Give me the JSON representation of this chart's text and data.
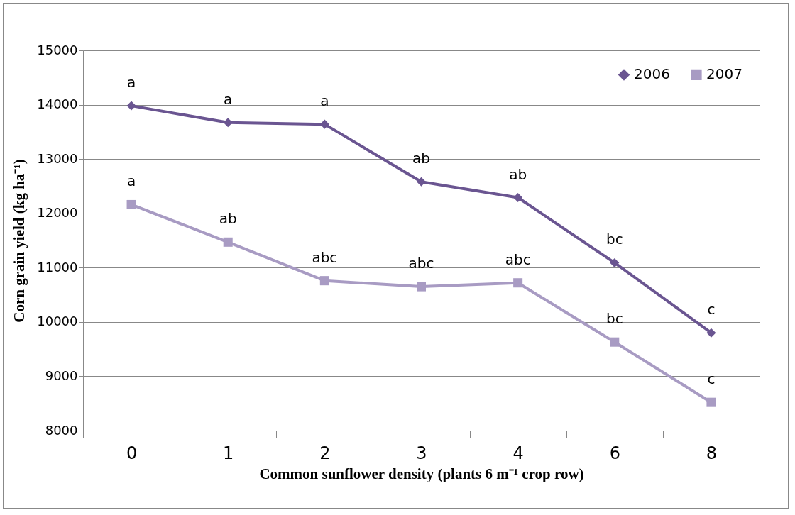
{
  "chart_data": {
    "type": "line",
    "xlabel": "Common sunflower density (plants 6 m⁻¹ crop row)",
    "ylabel": "Corn grain yield (kg ha⁻¹)",
    "categories": [
      "0",
      "1",
      "2",
      "3",
      "4",
      "6",
      "8"
    ],
    "series": [
      {
        "name": "2006",
        "color": "#6a5591",
        "marker": "diamond",
        "values": [
          13980,
          13670,
          13640,
          12580,
          12290,
          11090,
          9800
        ]
      },
      {
        "name": "2007",
        "color": "#a89bc3",
        "marker": "square",
        "values": [
          12160,
          11470,
          10760,
          10650,
          10720,
          9630,
          8520
        ]
      }
    ],
    "ylim": [
      8000,
      15000
    ],
    "yticks": [
      8000,
      9000,
      10000,
      11000,
      12000,
      13000,
      14000,
      15000
    ],
    "grid": "y",
    "legend": "top right",
    "line_style": "solid",
    "annotations": [
      {
        "text": "a",
        "x": "0",
        "y": 13980
      },
      {
        "text": "a",
        "x": "1",
        "y": 13670
      },
      {
        "text": "a",
        "x": "2",
        "y": 13640
      },
      {
        "text": "ab",
        "x": "3",
        "y": 12580
      },
      {
        "text": "ab",
        "x": "4",
        "y": 12290
      },
      {
        "text": "bc",
        "x": "6",
        "y": 11090
      },
      {
        "text": "c",
        "x": "8",
        "y": 9800
      },
      {
        "text": "a",
        "x": "0",
        "y": 12160
      },
      {
        "text": "ab",
        "x": "1",
        "y": 11470
      },
      {
        "text": "abc",
        "x": "2",
        "y": 10760
      },
      {
        "text": "abc",
        "x": "3",
        "y": 10650
      },
      {
        "text": "abc",
        "x": "4",
        "y": 10720
      },
      {
        "text": "bc",
        "x": "6",
        "y": 9630
      },
      {
        "text": "c",
        "x": "8",
        "y": 8520
      }
    ]
  }
}
